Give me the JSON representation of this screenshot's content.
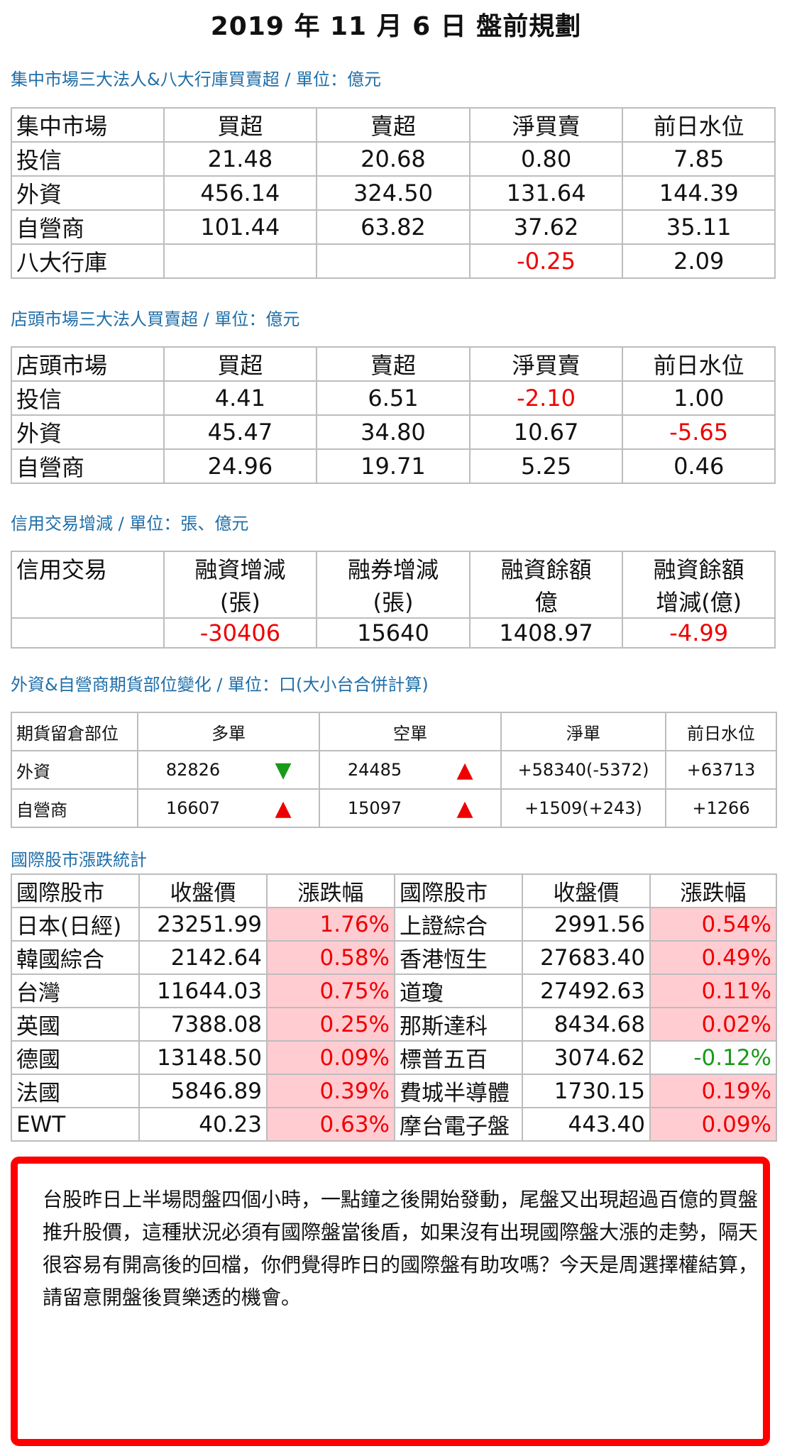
{
  "title": "2019 年 11 月 6 日  盤前規劃",
  "twse": {
    "section_title": "集中市場三大法人&八大行庫買賣超 / 單位：億元",
    "headers": [
      "集中市場",
      "買超",
      "賣超",
      "淨買賣",
      "前日水位"
    ],
    "rows": [
      [
        "投信",
        "21.48",
        "20.68",
        "0.80",
        "7.85"
      ],
      [
        "外資",
        "456.14",
        "324.50",
        "131.64",
        "144.39"
      ],
      [
        "自營商",
        "101.44",
        "63.82",
        "37.62",
        "35.11"
      ],
      [
        "八大行庫",
        "",
        "",
        "-0.25",
        "2.09"
      ]
    ]
  },
  "otc": {
    "section_title": "店頭市場三大法人買賣超 / 單位：億元",
    "headers": [
      "店頭市場",
      "買超",
      "賣超",
      "淨買賣",
      "前日水位"
    ],
    "rows": [
      [
        "投信",
        "4.41",
        "6.51",
        "-2.10",
        "1.00"
      ],
      [
        "外資",
        "45.47",
        "34.80",
        "10.67",
        "-5.65"
      ],
      [
        "自營商",
        "24.96",
        "19.71",
        "5.25",
        "0.46"
      ]
    ]
  },
  "margin": {
    "section_title": "信用交易增減 / 單位：張、億元",
    "headers1": [
      "信用交易",
      "融資增減",
      "融券增減",
      "融資餘額",
      "融資餘額"
    ],
    "headers2": [
      "",
      "(張)",
      "(張)",
      "億",
      "增減(億)"
    ],
    "values": [
      "",
      "-30406",
      "15640",
      "1408.97",
      "-4.99"
    ]
  },
  "futures": {
    "section_title": "外資&自營商期貨部位變化 / 單位：口(大小台合併計算)",
    "headers": [
      "期貨留倉部位",
      "多單",
      "空單",
      "淨單",
      "前日水位"
    ],
    "rows": [
      {
        "name": "外資",
        "long": "82826",
        "long_dir": "down",
        "short": "24485",
        "short_dir": "up",
        "net": "+58340(-5372)",
        "prev": "+63713"
      },
      {
        "name": "自營商",
        "long": "16607",
        "long_dir": "up",
        "short": "15097",
        "short_dir": "up",
        "net": "+1509(+243)",
        "prev": "+1266"
      }
    ],
    "up_symbol": "▲",
    "down_symbol": "▼"
  },
  "intl": {
    "section_title": "國際股市漲跌統計",
    "headers": [
      "國際股市",
      "收盤價",
      "漲跌幅",
      "國際股市",
      "收盤價",
      "漲跌幅"
    ],
    "rows": [
      [
        "日本(日經)",
        "23251.99",
        "1.76%",
        "上證綜合",
        "2991.56",
        "0.54%"
      ],
      [
        "韓國綜合",
        "2142.64",
        "0.58%",
        "香港恆生",
        "27683.40",
        "0.49%"
      ],
      [
        "台灣",
        "11644.03",
        "0.75%",
        "道瓊",
        "27492.63",
        "0.11%"
      ],
      [
        "英國",
        "7388.08",
        "0.25%",
        "那斯達科",
        "8434.68",
        "0.02%"
      ],
      [
        "德國",
        "13148.50",
        "0.09%",
        "標普五百",
        "3074.62",
        "-0.12%"
      ],
      [
        "法國",
        "5846.89",
        "0.39%",
        "費城半導體",
        "1730.15",
        "0.19%"
      ],
      [
        "EWT",
        "40.23",
        "0.63%",
        "摩台電子盤",
        "443.40",
        "0.09%"
      ]
    ]
  },
  "note": "台股昨日上半場悶盤四個小時，一點鐘之後開始發動，尾盤又出現超過百億的買盤推升股價，這種狀況必須有國際盤當後盾，如果沒有出現國際盤大漲的走勢，隔天很容易有開高後的回檔，你們覺得昨日的國際盤有助攻嗎？今天是周選擇權結算，請留意開盤後買樂透的機會。",
  "colors": {
    "section_title": "#1f6ea8",
    "negative": "#e00000",
    "positive": "#1a9a1a",
    "gain_bg": "#ffccd2",
    "note_border": "#ff0000"
  }
}
